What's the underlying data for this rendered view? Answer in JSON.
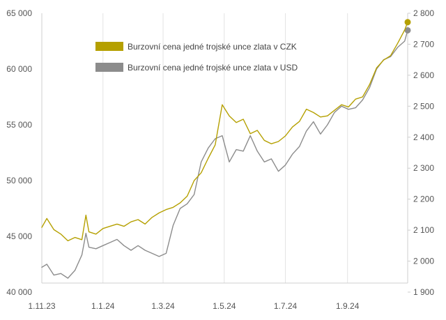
{
  "chart_data": {
    "type": "line",
    "title": "",
    "xlabel": "",
    "ylabel_left": "",
    "ylabel_right": "",
    "x_ticks": [
      "1.11.23",
      "1.1.24",
      "1.3.24",
      "1.5.24",
      "1.7.24",
      "1.9.24"
    ],
    "y_left": {
      "ticks": [
        "40 000",
        "45 000",
        "50 000",
        "55 000",
        "60 000",
        "65 000"
      ],
      "range": [
        40000,
        65000
      ]
    },
    "y_right": {
      "ticks": [
        "1 900",
        "2 000",
        "2 100",
        "2 200",
        "2 300",
        "2 400",
        "2 500",
        "2 600",
        "2 700",
        "2 800"
      ],
      "range": [
        1900,
        2800
      ]
    },
    "x_range": [
      "2023-11-01",
      "2024-10-31"
    ],
    "grid": "vertical",
    "legend_position": "top-left",
    "series": [
      {
        "name": "Burzovní cena jedné trojské unce zlata v CZK",
        "color": "#b5a000",
        "axis": "left",
        "points": [
          [
            "2023-11-01",
            45800
          ],
          [
            "2023-11-06",
            46600
          ],
          [
            "2023-11-13",
            45600
          ],
          [
            "2023-11-20",
            45200
          ],
          [
            "2023-11-27",
            44600
          ],
          [
            "2023-12-04",
            44900
          ],
          [
            "2023-12-11",
            44700
          ],
          [
            "2023-12-15",
            46900
          ],
          [
            "2023-12-18",
            45400
          ],
          [
            "2023-12-25",
            45200
          ],
          [
            "2024-01-01",
            45700
          ],
          [
            "2024-01-08",
            45900
          ],
          [
            "2024-01-15",
            46100
          ],
          [
            "2024-01-22",
            45900
          ],
          [
            "2024-01-29",
            46300
          ],
          [
            "2024-02-05",
            46500
          ],
          [
            "2024-02-12",
            46100
          ],
          [
            "2024-02-19",
            46700
          ],
          [
            "2024-02-26",
            47100
          ],
          [
            "2024-03-04",
            47400
          ],
          [
            "2024-03-11",
            47600
          ],
          [
            "2024-03-18",
            48000
          ],
          [
            "2024-03-25",
            48600
          ],
          [
            "2024-04-01",
            50000
          ],
          [
            "2024-04-08",
            50700
          ],
          [
            "2024-04-15",
            52000
          ],
          [
            "2024-04-22",
            53200
          ],
          [
            "2024-04-29",
            56800
          ],
          [
            "2024-05-06",
            55800
          ],
          [
            "2024-05-13",
            55200
          ],
          [
            "2024-05-20",
            55500
          ],
          [
            "2024-05-27",
            54200
          ],
          [
            "2024-06-03",
            54500
          ],
          [
            "2024-06-10",
            53600
          ],
          [
            "2024-06-17",
            53300
          ],
          [
            "2024-06-24",
            53500
          ],
          [
            "2024-07-01",
            54000
          ],
          [
            "2024-07-08",
            54800
          ],
          [
            "2024-07-15",
            55300
          ],
          [
            "2024-07-22",
            56400
          ],
          [
            "2024-07-29",
            56100
          ],
          [
            "2024-08-05",
            55700
          ],
          [
            "2024-08-12",
            55800
          ],
          [
            "2024-08-19",
            56300
          ],
          [
            "2024-08-26",
            56800
          ],
          [
            "2024-09-02",
            56600
          ],
          [
            "2024-09-09",
            57300
          ],
          [
            "2024-09-16",
            57500
          ],
          [
            "2024-09-23",
            58600
          ],
          [
            "2024-09-30",
            60100
          ],
          [
            "2024-10-07",
            60800
          ],
          [
            "2024-10-14",
            61200
          ],
          [
            "2024-10-21",
            62300
          ],
          [
            "2024-10-28",
            63500
          ],
          [
            "2024-10-31",
            64200
          ]
        ]
      },
      {
        "name": "Burzovní cena jedné trojské unce zlata v USD",
        "color": "#8c8c8c",
        "axis": "right",
        "points": [
          [
            "2023-11-01",
            1980
          ],
          [
            "2023-11-06",
            1990
          ],
          [
            "2023-11-13",
            1955
          ],
          [
            "2023-11-20",
            1960
          ],
          [
            "2023-11-27",
            1945
          ],
          [
            "2023-12-04",
            1970
          ],
          [
            "2023-12-11",
            2020
          ],
          [
            "2023-12-15",
            2090
          ],
          [
            "2023-12-18",
            2045
          ],
          [
            "2023-12-25",
            2040
          ],
          [
            "2024-01-01",
            2050
          ],
          [
            "2024-01-08",
            2060
          ],
          [
            "2024-01-15",
            2070
          ],
          [
            "2024-01-22",
            2050
          ],
          [
            "2024-01-29",
            2035
          ],
          [
            "2024-02-05",
            2050
          ],
          [
            "2024-02-12",
            2035
          ],
          [
            "2024-02-19",
            2025
          ],
          [
            "2024-02-26",
            2015
          ],
          [
            "2024-03-04",
            2025
          ],
          [
            "2024-03-11",
            2115
          ],
          [
            "2024-03-18",
            2170
          ],
          [
            "2024-03-25",
            2185
          ],
          [
            "2024-04-01",
            2215
          ],
          [
            "2024-04-08",
            2320
          ],
          [
            "2024-04-15",
            2365
          ],
          [
            "2024-04-22",
            2395
          ],
          [
            "2024-04-29",
            2405
          ],
          [
            "2024-05-06",
            2320
          ],
          [
            "2024-05-13",
            2360
          ],
          [
            "2024-05-20",
            2355
          ],
          [
            "2024-05-27",
            2405
          ],
          [
            "2024-06-03",
            2355
          ],
          [
            "2024-06-10",
            2320
          ],
          [
            "2024-06-17",
            2330
          ],
          [
            "2024-06-24",
            2290
          ],
          [
            "2024-07-01",
            2310
          ],
          [
            "2024-07-08",
            2345
          ],
          [
            "2024-07-15",
            2370
          ],
          [
            "2024-07-22",
            2420
          ],
          [
            "2024-07-29",
            2450
          ],
          [
            "2024-08-05",
            2410
          ],
          [
            "2024-08-12",
            2440
          ],
          [
            "2024-08-19",
            2480
          ],
          [
            "2024-08-26",
            2500
          ],
          [
            "2024-09-02",
            2490
          ],
          [
            "2024-09-09",
            2495
          ],
          [
            "2024-09-16",
            2520
          ],
          [
            "2024-09-23",
            2560
          ],
          [
            "2024-09-30",
            2620
          ],
          [
            "2024-10-07",
            2650
          ],
          [
            "2024-10-14",
            2660
          ],
          [
            "2024-10-21",
            2690
          ],
          [
            "2024-10-28",
            2710
          ],
          [
            "2024-10-31",
            2745
          ]
        ]
      }
    ]
  }
}
